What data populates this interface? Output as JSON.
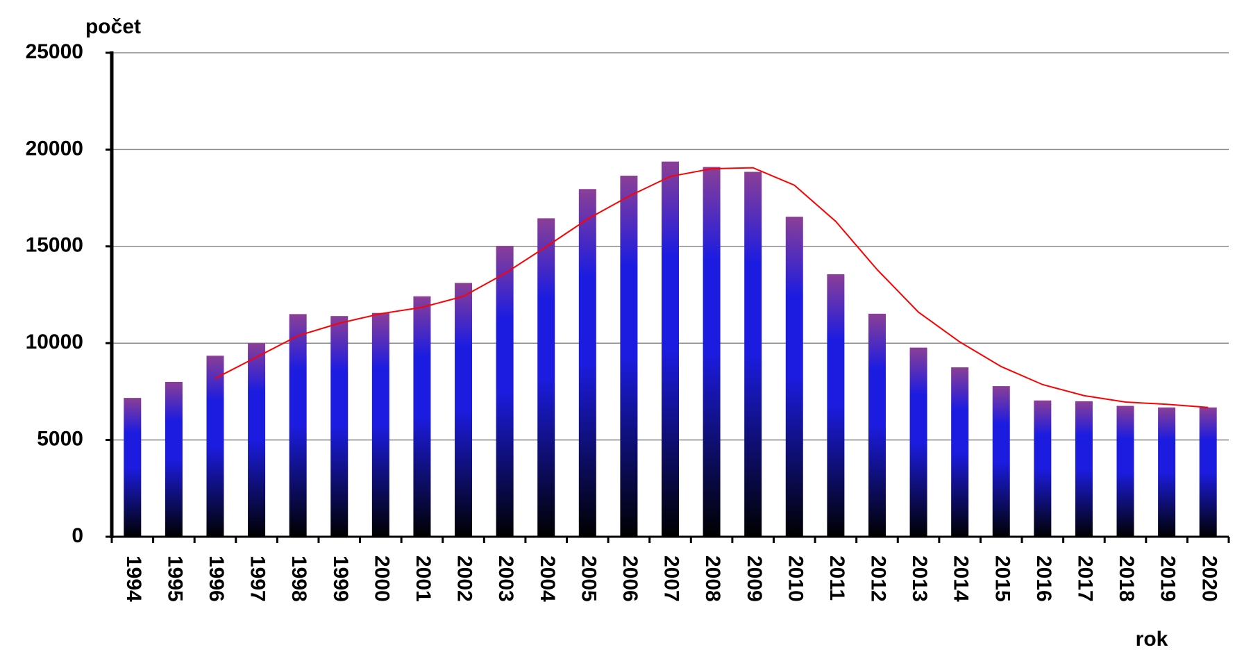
{
  "chart_data": {
    "type": "bar",
    "y_label": "počet",
    "x_label": "rok",
    "categories": [
      "1994",
      "1995",
      "1996",
      "1997",
      "1998",
      "1999",
      "2000",
      "2001",
      "2002",
      "2003",
      "2004",
      "2005",
      "2006",
      "2007",
      "2008",
      "2009",
      "2010",
      "2011",
      "2012",
      "2013",
      "2014",
      "2015",
      "2016",
      "2017",
      "2018",
      "2019",
      "2020"
    ],
    "series": [
      {
        "type": "bar",
        "gradient": [
          "#8b3f96",
          "#1c1ce0",
          "#000000"
        ],
        "values": [
          7170,
          8000,
          9350,
          10000,
          11500,
          11400,
          11560,
          12420,
          13110,
          15020,
          16450,
          17960,
          18650,
          19380,
          19100,
          18850,
          16530,
          13560,
          11520,
          9770,
          8750,
          7780,
          7040,
          7000,
          6760,
          6680,
          6680
        ]
      },
      {
        "type": "line",
        "color": "#ff0000",
        "values": [
          null,
          null,
          8180,
          9280,
          10380,
          11030,
          11520,
          11850,
          12420,
          13600,
          14980,
          16410,
          17590,
          18610,
          19010,
          19060,
          18160,
          16290,
          13800,
          11600,
          10060,
          8790,
          7860,
          7290,
          6960,
          6840,
          6680
        ]
      }
    ],
    "ylim": [
      0,
      25000
    ],
    "yticks": [
      0,
      5000,
      10000,
      15000,
      20000,
      25000
    ],
    "grid": true
  }
}
